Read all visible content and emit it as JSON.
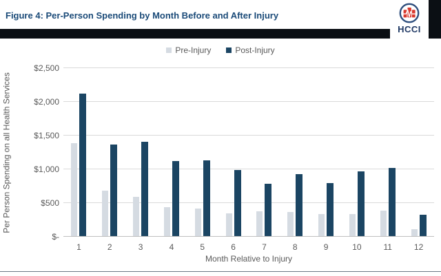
{
  "header": {
    "title": "Figure 4: Per-Person Spending by Month Before and After Injury",
    "title_color": "#1a4a78",
    "band_color": "#0b0f14",
    "logo_text": "HCCI",
    "logo_colors": {
      "ring": "#2d4d7c",
      "bars": "#d9392e",
      "pulse": "#ffffff",
      "text": "#1f3864"
    }
  },
  "chart_data": {
    "type": "bar",
    "title": "",
    "categories": [
      "1",
      "2",
      "3",
      "4",
      "5",
      "6",
      "7",
      "8",
      "9",
      "10",
      "11",
      "12"
    ],
    "series": [
      {
        "name": "Pre-Injury",
        "color": "#d5dbe2",
        "values": [
          1380,
          670,
          580,
          430,
          410,
          335,
          365,
          355,
          330,
          330,
          375,
          105
        ]
      },
      {
        "name": "Post-Injury",
        "color": "#1b4563",
        "values": [
          2110,
          1360,
          1400,
          1110,
          1120,
          975,
          775,
          920,
          790,
          960,
          1010,
          320
        ]
      }
    ],
    "xlabel": "Month Relative to Injury",
    "ylabel": "Per Person Spending on all Health Services",
    "ylim": [
      0,
      2500
    ],
    "ytick_interval": 500,
    "ytick_labels": [
      "$-",
      "$500",
      "$1,000",
      "$1,500",
      "$2,000",
      "$2,500"
    ],
    "grid": true,
    "legend_position": "top-center",
    "axis_text_color": "#595959",
    "gridline_color": "#d9d9d9"
  }
}
